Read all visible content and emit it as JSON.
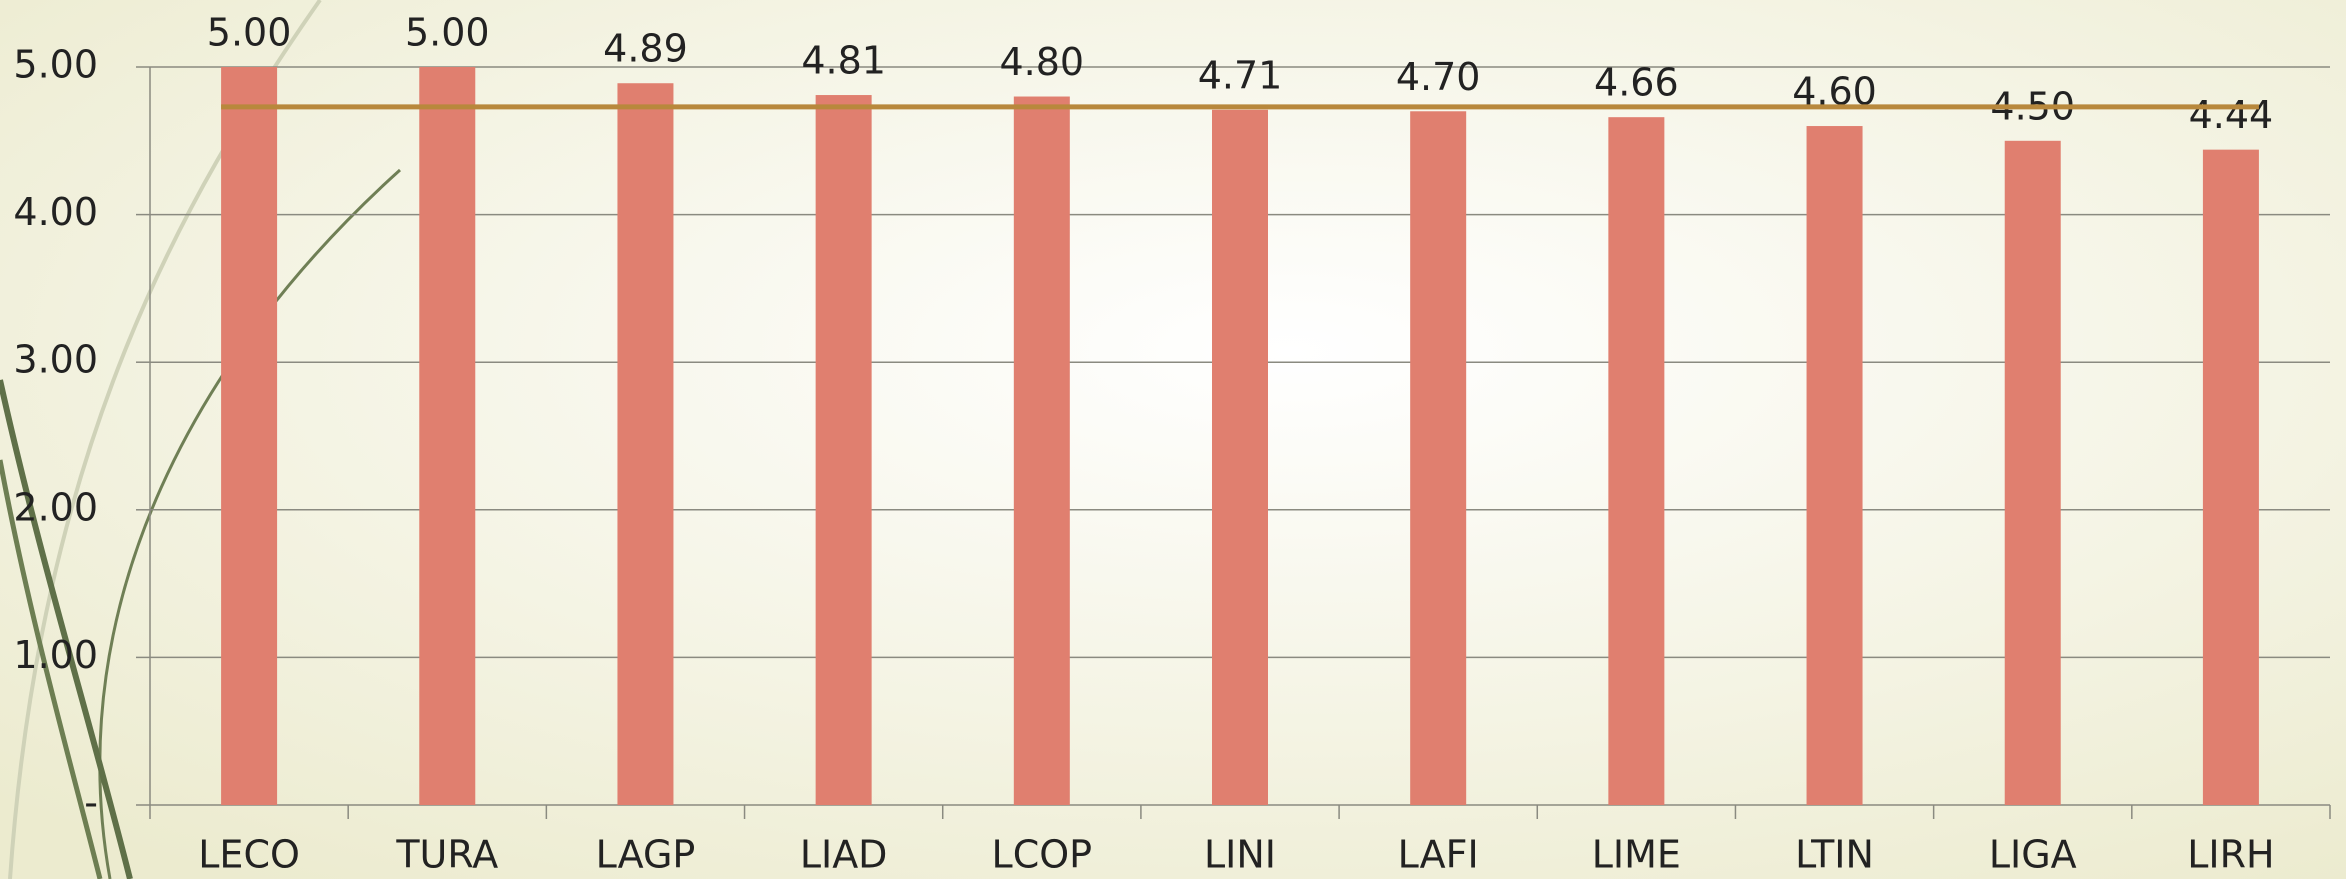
{
  "chart_data": {
    "type": "bar",
    "categories": [
      "LECO",
      "TURA",
      "LAGP",
      "LIAD",
      "LCOP",
      "LINI",
      "LAFI",
      "LIME",
      "LTIN",
      "LIGA",
      "LIRH"
    ],
    "values": [
      5,
      5,
      4.89,
      4.81,
      4.8,
      4.71,
      4.7,
      4.66,
      4.6,
      4.5,
      4.44
    ],
    "value_labels": [
      "5.00",
      "5.00",
      "4.89",
      "4.81",
      "4.80",
      "4.71",
      "4.70",
      "4.66",
      "4.60",
      "4.50",
      "4.44"
    ],
    "color": "#e07f6f",
    "average_line": {
      "value": 4.73,
      "color": "#b8883c"
    },
    "ylim": [
      0,
      5
    ],
    "yticks": [
      {
        "value": 0,
        "label": "-"
      },
      {
        "value": 1,
        "label": "1.00"
      },
      {
        "value": 2,
        "label": "2.00"
      },
      {
        "value": 3,
        "label": "3.00"
      },
      {
        "value": 4,
        "label": "4.00"
      },
      {
        "value": 5,
        "label": "5.00"
      }
    ],
    "grid": true
  }
}
